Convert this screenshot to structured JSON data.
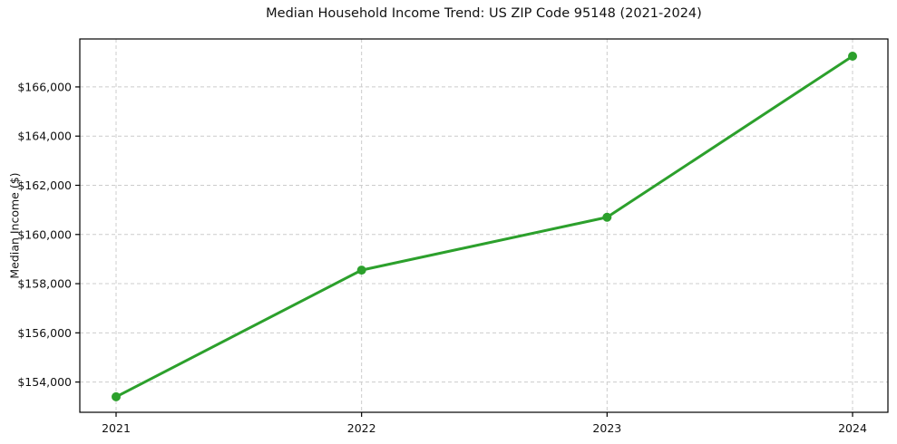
{
  "chart_data": {
    "type": "line",
    "title": "Median Household Income Trend: US ZIP Code 95148 (2021-2024)",
    "xlabel": "",
    "ylabel": "Median Income ($)",
    "x": [
      2021,
      2022,
      2023,
      2024
    ],
    "x_tick_labels": [
      "2021",
      "2022",
      "2023",
      "2024"
    ],
    "series": [
      {
        "name": "median-household-income",
        "color": "#2ca02c",
        "marker": "circle",
        "values": [
          153400,
          158550,
          160700,
          167250
        ]
      }
    ],
    "y_ticks": [
      {
        "value": 154000,
        "label": "$154,000"
      },
      {
        "value": 156000,
        "label": "$156,000"
      },
      {
        "value": 158000,
        "label": "$158,000"
      },
      {
        "value": 160000,
        "label": "$160,000"
      },
      {
        "value": 162000,
        "label": "$162,000"
      },
      {
        "value": 164000,
        "label": "$164,000"
      },
      {
        "value": 166000,
        "label": "$166,000"
      }
    ],
    "ylim": [
      152770,
      167950
    ],
    "grid": {
      "show": true,
      "linestyle": "dashed",
      "color": "#cccccc"
    },
    "legend_position": "none",
    "spine_color": "#000000",
    "text_color": "#111111",
    "background_color": "#ffffff"
  }
}
